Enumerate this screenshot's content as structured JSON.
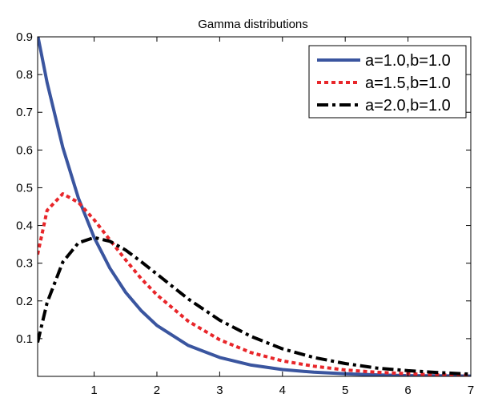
{
  "chart_data": {
    "type": "line",
    "title": "Gamma distributions",
    "xlabel": "",
    "ylabel": "",
    "xlim": [
      0.1,
      7
    ],
    "ylim": [
      0,
      0.9
    ],
    "x_ticks": [
      1,
      2,
      3,
      4,
      5,
      6,
      7
    ],
    "x_tick_labels": [
      "1",
      "2",
      "3",
      "4",
      "5",
      "6",
      "7"
    ],
    "y_ticks": [
      0.1,
      0.2,
      0.3,
      0.4,
      0.5,
      0.6,
      0.7,
      0.8,
      0.9
    ],
    "y_tick_labels": [
      "0.1",
      "0.2",
      "0.3",
      "0.4",
      "0.5",
      "0.6",
      "0.7",
      "0.8",
      "0.9"
    ],
    "grid": false,
    "legend_position": "top-right",
    "series": [
      {
        "name": "a=1.0,b=1.0",
        "color": "#3a559f",
        "style": "solid",
        "x": [
          0.1,
          0.25,
          0.5,
          0.75,
          1.0,
          1.25,
          1.5,
          1.75,
          2.0,
          2.5,
          3.0,
          3.5,
          4.0,
          4.5,
          5.0,
          5.5,
          6.0,
          6.5,
          7.0
        ],
        "y": [
          0.905,
          0.779,
          0.607,
          0.472,
          0.368,
          0.287,
          0.223,
          0.174,
          0.135,
          0.082,
          0.05,
          0.03,
          0.018,
          0.011,
          0.007,
          0.004,
          0.002,
          0.0015,
          0.0009
        ]
      },
      {
        "name": "a=1.5,b=1.0",
        "color": "#e8262a",
        "style": "dotted",
        "x": [
          0.1,
          0.25,
          0.5,
          0.75,
          1.0,
          1.25,
          1.5,
          1.75,
          2.0,
          2.5,
          3.0,
          3.5,
          4.0,
          4.5,
          5.0,
          5.5,
          6.0,
          6.5,
          7.0
        ],
        "y": [
          0.323,
          0.44,
          0.484,
          0.461,
          0.415,
          0.362,
          0.309,
          0.259,
          0.216,
          0.146,
          0.097,
          0.063,
          0.041,
          0.027,
          0.017,
          0.011,
          0.007,
          0.004,
          0.003
        ]
      },
      {
        "name": "a=2.0,b=1.0",
        "color": "#000000",
        "style": "dashdot",
        "x": [
          0.1,
          0.25,
          0.5,
          0.75,
          1.0,
          1.25,
          1.5,
          1.75,
          2.0,
          2.5,
          3.0,
          3.5,
          4.0,
          4.5,
          5.0,
          5.5,
          6.0,
          6.5,
          7.0
        ],
        "y": [
          0.09,
          0.195,
          0.303,
          0.354,
          0.368,
          0.358,
          0.335,
          0.304,
          0.271,
          0.205,
          0.149,
          0.106,
          0.073,
          0.05,
          0.034,
          0.022,
          0.015,
          0.01,
          0.006
        ]
      }
    ]
  }
}
